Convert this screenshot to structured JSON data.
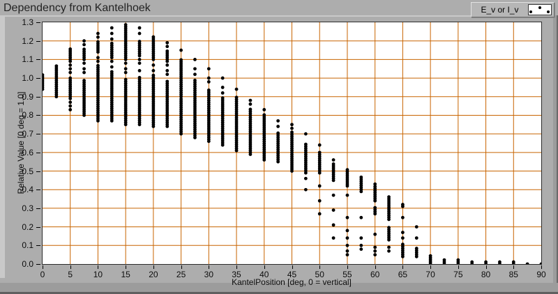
{
  "window": {
    "title": "Dependency from Kantelhoek"
  },
  "legend": {
    "label": "E_v or I_v",
    "marker_icon": "scatter-dots"
  },
  "colors": {
    "panel": "#adadad",
    "panel_highlight": "#c9c9c9",
    "panel_shadow": "#9c9c9c",
    "panel_dark_edge": "#5f5f5f",
    "plot_background": "#ffffff",
    "grid": "#c86400",
    "frame": "#2b2b2b",
    "point": "#000000",
    "text": "#141414"
  },
  "chart_data": {
    "type": "scatter",
    "title": "Dependency from Kantelhoek",
    "xlabel": "KantelPosition [deg, 0 = vertical]",
    "ylabel": "Relative Value [0 deg = 1.0]",
    "xlim": [
      0,
      90
    ],
    "ylim": [
      0,
      1.3
    ],
    "x_ticks": [
      0,
      5,
      10,
      15,
      20,
      25,
      30,
      35,
      40,
      45,
      50,
      55,
      60,
      65,
      70,
      75,
      80,
      85,
      90
    ],
    "y_ticks": [
      "0.0",
      "0.1",
      "0.2",
      "0.3",
      "0.4",
      "0.5",
      "0.6",
      "0.7",
      "0.8",
      "0.9",
      "1.0",
      "1.1",
      "1.2",
      "1.3"
    ],
    "grid": true,
    "legend_position": "top-right",
    "series": [
      {
        "name": "E_v or I_v",
        "marker": "dot",
        "color": "#000000",
        "columns": [
          {
            "x": 0,
            "bars": [
              [
                0.94,
                1.02
              ]
            ],
            "dots": []
          },
          {
            "x": 2.5,
            "bars": [
              [
                0.9,
                1.07
              ]
            ],
            "dots": []
          },
          {
            "x": 5,
            "bars": [
              [
                1.09,
                1.16
              ],
              [
                0.89,
                1.0
              ]
            ],
            "dots": [
              1.07,
              1.05,
              1.03,
              0.87,
              0.85,
              0.83
            ]
          },
          {
            "x": 7.5,
            "bars": [
              [
                1.1,
                1.16
              ],
              [
                0.8,
                0.99
              ]
            ],
            "dots": [
              1.2,
              1.18,
              1.08,
              1.05,
              1.03
            ]
          },
          {
            "x": 10,
            "bars": [
              [
                1.14,
                1.2
              ],
              [
                0.77,
                1.07
              ]
            ],
            "dots": [
              1.24,
              1.22,
              1.11,
              1.09
            ]
          },
          {
            "x": 12.5,
            "bars": [
              [
                1.11,
                1.19
              ],
              [
                0.77,
                1.04
              ]
            ],
            "dots": [
              1.27,
              1.24,
              1.21,
              1.09,
              1.06
            ]
          },
          {
            "x": 15,
            "bars": [
              [
                1.1,
                1.29
              ],
              [
                0.75,
                1.0
              ]
            ],
            "dots": [
              1.08,
              1.05,
              1.03
            ]
          },
          {
            "x": 17.5,
            "bars": [
              [
                1.12,
                1.2
              ],
              [
                0.75,
                1.01
              ]
            ],
            "dots": [
              1.27,
              1.24,
              1.1,
              1.08,
              1.04
            ]
          },
          {
            "x": 20,
            "bars": [
              [
                1.1,
                1.23
              ],
              [
                0.74,
                1.02
              ]
            ],
            "dots": [
              1.07,
              1.04
            ]
          },
          {
            "x": 22.5,
            "bars": [
              [
                1.09,
                1.15
              ],
              [
                0.74,
                0.99
              ]
            ],
            "dots": [
              1.19,
              1.17,
              1.07,
              1.04,
              1.02
            ]
          },
          {
            "x": 25,
            "bars": [
              [
                0.9,
                1.1
              ],
              [
                0.7,
                0.89
              ]
            ],
            "dots": [
              1.15
            ]
          },
          {
            "x": 27.5,
            "bars": [
              [
                0.68,
                0.99
              ]
            ],
            "dots": [
              1.1,
              1.05,
              1.02
            ]
          },
          {
            "x": 30,
            "bars": [
              [
                0.66,
                0.94
              ]
            ],
            "dots": [
              1.05,
              1.0,
              0.98
            ]
          },
          {
            "x": 32.5,
            "bars": [
              [
                0.64,
                0.9
              ]
            ],
            "dots": [
              1.0,
              0.95,
              0.92
            ]
          },
          {
            "x": 35,
            "bars": [
              [
                0.61,
                0.9
              ]
            ],
            "dots": [
              0.94
            ]
          },
          {
            "x": 37.5,
            "bars": [
              [
                0.59,
                0.84
              ]
            ],
            "dots": [
              0.88,
              0.86
            ]
          },
          {
            "x": 40,
            "bars": [
              [
                0.56,
                0.81
              ]
            ],
            "dots": [
              0.83
            ]
          },
          {
            "x": 42.5,
            "bars": [
              [
                0.55,
                0.71
              ]
            ],
            "dots": [
              0.77,
              0.74
            ]
          },
          {
            "x": 45,
            "bars": [
              [
                0.5,
                0.71
              ]
            ],
            "dots": [
              0.75,
              0.73
            ]
          },
          {
            "x": 47.5,
            "bars": [
              [
                0.49,
                0.65
              ]
            ],
            "dots": [
              0.7,
              0.46,
              0.4
            ]
          },
          {
            "x": 50,
            "bars": [
              [
                0.49,
                0.61
              ]
            ],
            "dots": [
              0.64,
              0.42,
              0.34,
              0.27
            ]
          },
          {
            "x": 52.5,
            "bars": [
              [
                0.45,
                0.54
              ]
            ],
            "dots": [
              0.56,
              0.37,
              0.29,
              0.21,
              0.14
            ]
          },
          {
            "x": 55,
            "bars": [
              [
                0.43,
                0.51
              ]
            ],
            "dots": [
              0.42,
              0.37,
              0.25,
              0.18,
              0.14,
              0.1,
              0.07,
              0.05
            ]
          },
          {
            "x": 57.5,
            "bars": [
              [
                0.39,
                0.47
              ]
            ],
            "dots": [
              0.25,
              0.14,
              0.1,
              0.08
            ]
          },
          {
            "x": 60,
            "bars": [
              [
                0.34,
                0.42
              ],
              [
                0.27,
                0.31
              ]
            ],
            "dots": [
              0.43,
              0.16,
              0.09,
              0.07,
              0.05
            ]
          },
          {
            "x": 62.5,
            "bars": [
              [
                0.24,
                0.37
              ],
              [
                0.13,
                0.2
              ]
            ],
            "dots": [
              0.09,
              0.07
            ]
          },
          {
            "x": 65,
            "bars": [
              [
                0.04,
                0.11
              ]
            ],
            "dots": [
              0.32,
              0.31,
              0.25,
              0.17,
              0.14
            ]
          },
          {
            "x": 67.5,
            "bars": [
              [
                0.04,
                0.09
              ]
            ],
            "dots": [
              0.2,
              0.14
            ]
          },
          {
            "x": 70,
            "bars": [
              [
                0.0,
                0.05
              ]
            ],
            "dots": []
          },
          {
            "x": 72.5,
            "bars": [
              [
                0.0,
                0.03
              ]
            ],
            "dots": []
          },
          {
            "x": 75,
            "bars": [
              [
                0.0,
                0.025
              ]
            ],
            "dots": []
          },
          {
            "x": 77.5,
            "bars": [
              [
                0.0,
                0.018
              ]
            ],
            "dots": []
          },
          {
            "x": 80,
            "bars": [
              [
                0.0,
                0.014
              ]
            ],
            "dots": []
          },
          {
            "x": 82.5,
            "bars": [
              [
                0.0,
                0.013
              ]
            ],
            "dots": []
          },
          {
            "x": 85,
            "bars": [
              [
                0.0,
                0.012
              ]
            ],
            "dots": []
          },
          {
            "x": 87.5,
            "bars": [
              [
                0.0,
                0.009
              ]
            ],
            "dots": []
          },
          {
            "x": 90,
            "bars": [
              [
                0.0,
                0.007
              ]
            ],
            "dots": []
          }
        ]
      }
    ]
  }
}
